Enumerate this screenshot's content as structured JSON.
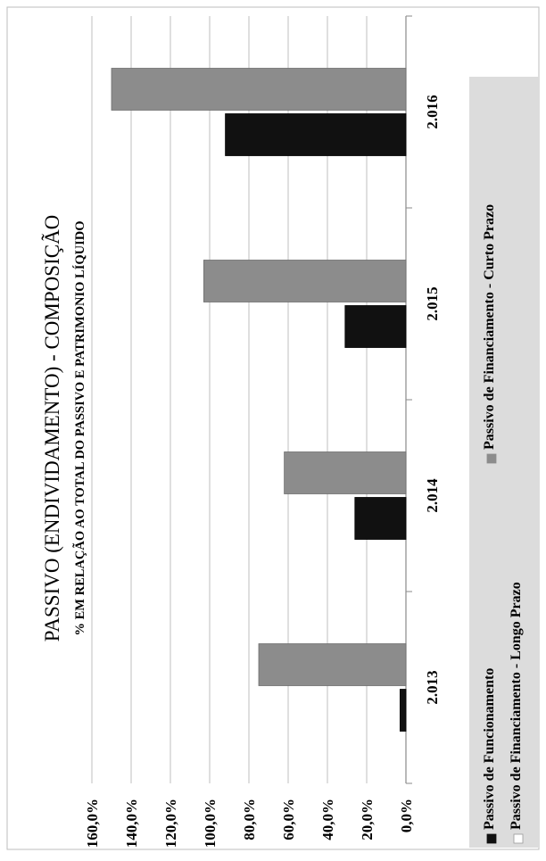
{
  "chart_data": {
    "type": "bar",
    "title": "PASSIVO  (ENDIVIDAMENTO)  - COMPOSIÇÃO",
    "subtitle": "% EM RELAÇÃO AO TOTAL DO PASSIVO E PATRIMONIO LÍQUIDO",
    "categories": [
      "2.013",
      "2.014",
      "2.015",
      "2.016"
    ],
    "series": [
      {
        "name": "Passivo de Funcionamento",
        "values": [
          3.0,
          26.0,
          31.0,
          92.0
        ],
        "color": "#111111"
      },
      {
        "name": "Passivo de Financiamento - Longo Prazo",
        "values": [
          0.0,
          0.0,
          0.0,
          0.0
        ],
        "color": "#ffffff"
      },
      {
        "name": "Passivo de Financiamento - Curto Prazo",
        "values": [
          75.0,
          62.0,
          103.0,
          150.0
        ],
        "color": "#8c8c8c"
      }
    ],
    "yticks": [
      "0,0%",
      "20,0%",
      "40,0%",
      "60,0%",
      "80,0%",
      "100,0%",
      "120,0%",
      "140,0%",
      "160,0%"
    ],
    "ylim": [
      0,
      160
    ],
    "grid": true,
    "legend_position": "bottom",
    "orientation": "rotated-90"
  }
}
